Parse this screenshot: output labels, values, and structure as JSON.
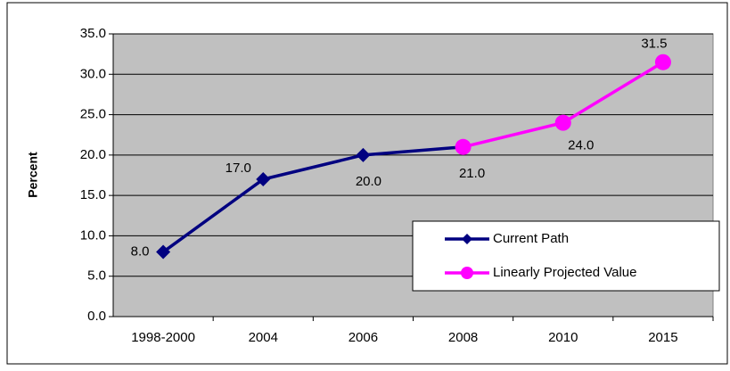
{
  "chart_data": {
    "type": "line",
    "y_label": "Percent",
    "categories": [
      "1998-2000",
      "2004",
      "2006",
      "2008",
      "2010",
      "2015"
    ],
    "series": [
      {
        "name": "Current Path",
        "color": "#000080",
        "marker": "diamond",
        "values": [
          8.0,
          17.0,
          20.0,
          21.0,
          null,
          null
        ],
        "value_labels": [
          "8.0",
          "17.0",
          "20.0",
          "21.0",
          null,
          null
        ]
      },
      {
        "name": "Linearly Projected Value",
        "color": "#ff00ff",
        "marker": "circle",
        "values": [
          null,
          null,
          null,
          21.0,
          24.0,
          31.5
        ],
        "value_labels": [
          null,
          null,
          null,
          null,
          "24.0",
          "31.5"
        ]
      }
    ],
    "ylim": [
      0,
      35
    ],
    "yticks": [
      {
        "value": 0,
        "label": "0.0"
      },
      {
        "value": 5,
        "label": "5.0"
      },
      {
        "value": 10,
        "label": "10.0"
      },
      {
        "value": 15,
        "label": "15.0"
      },
      {
        "value": 20,
        "label": "20.0"
      },
      {
        "value": 25,
        "label": "25.0"
      },
      {
        "value": 30,
        "label": "30.0"
      },
      {
        "value": 35,
        "label": "35.0"
      }
    ],
    "grid": true,
    "legend_position": "lower right"
  }
}
